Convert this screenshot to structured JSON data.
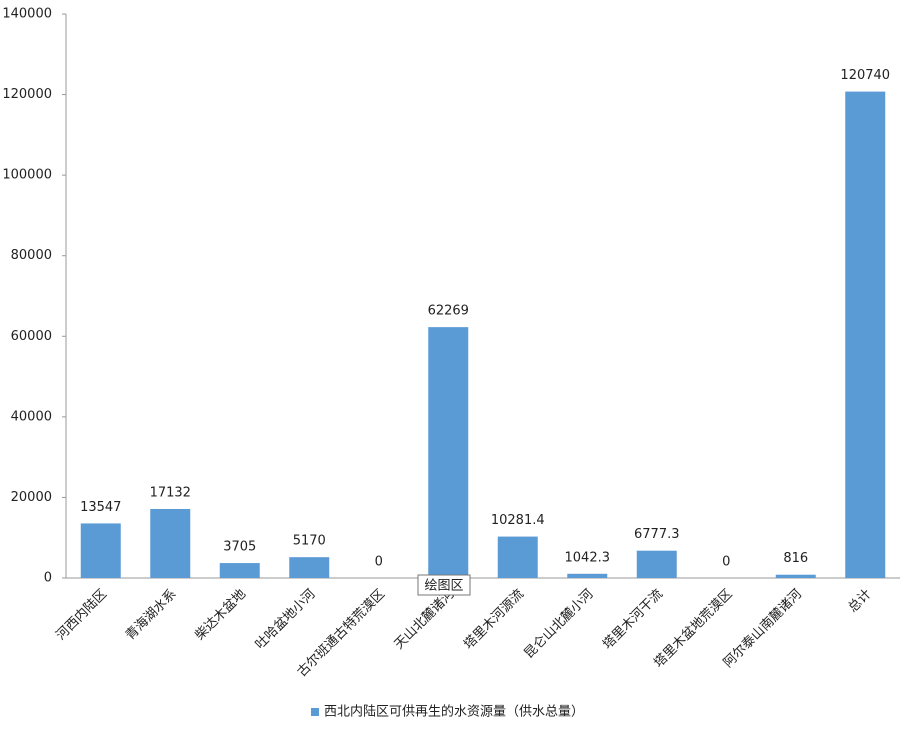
{
  "chart_data": {
    "type": "bar",
    "categories": [
      "河西内陆区",
      "青海湖水系",
      "柴达木盆地",
      "吐哈盆地小河",
      "古尔班通古特荒漠区",
      "天山北麓诸河",
      "塔里木河源流",
      "昆仑山北麓小河",
      "塔里木河干流",
      "塔里木盆地荒漠区",
      "阿尔泰山南麓诸河",
      "总计"
    ],
    "series": [
      {
        "name": "西北内陆区可供再生的水资源量（供水总量）",
        "color": "#5b9bd5",
        "values": [
          13547,
          17132,
          3705,
          5170,
          0,
          62269,
          10281.4,
          1042.3,
          6777.3,
          0,
          816,
          120740
        ]
      }
    ],
    "ylim": [
      0,
      140000
    ],
    "yticks": [
      0,
      20000,
      40000,
      60000,
      80000,
      100000,
      120000,
      140000
    ],
    "grid": false,
    "legend": "bottom",
    "tooltip": "绘图区"
  }
}
